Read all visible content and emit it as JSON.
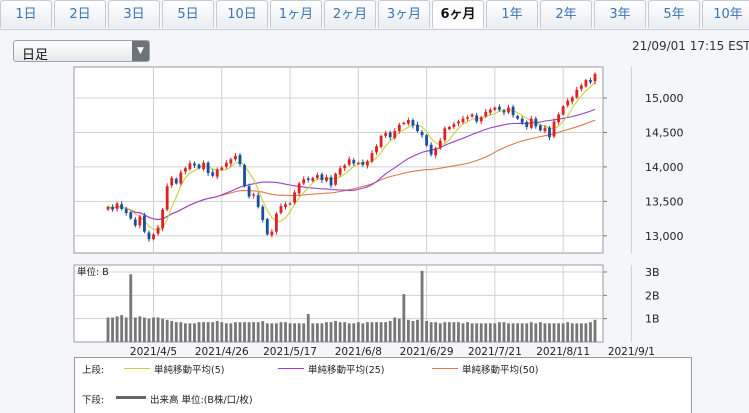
{
  "tabs": [
    "1日",
    "2日",
    "3日",
    "5日",
    "10日",
    "1ヶ月",
    "2ヶ月",
    "3ヶ月",
    "6ヶ月",
    "1年",
    "2年",
    "3年",
    "5年",
    "10年"
  ],
  "active_tab": "6ヶ月",
  "select": {
    "label": "日足"
  },
  "timestamp": "21/09/01 17:15 EST",
  "volume_unit_label": "単位: B",
  "colors": {
    "up": "#dd2222",
    "down": "#1d4e9c",
    "ma5": "#c8d23a",
    "ma25": "#9a3fd1",
    "ma50": "#e07a4a",
    "volume": "#777777"
  },
  "legend": {
    "upper_label": "上段:",
    "lower_label": "下段:",
    "items": [
      {
        "name": "単純移動平均(5)",
        "color": "#c8d23a"
      },
      {
        "name": "単純移動平均(25)",
        "color": "#9a3fd1"
      },
      {
        "name": "単純移動平均(50)",
        "color": "#e07a4a"
      }
    ],
    "volume_item": {
      "name": "出来高 単位:(B株/口/枚)",
      "color": "#666666"
    }
  },
  "chart_data": {
    "type": "candlestick",
    "price_axis": {
      "ticks": [
        13000,
        13500,
        14000,
        14500,
        15000
      ],
      "tick_labels": [
        "13,000",
        "13,500",
        "14,000",
        "14,500",
        "15,000"
      ],
      "range": [
        12750,
        15450
      ]
    },
    "volume_axis": {
      "ticks": [
        1,
        2,
        3
      ],
      "tick_labels": [
        "1B",
        "2B",
        "3B"
      ],
      "range": [
        0,
        3.3
      ]
    },
    "date_labels": [
      "2021/4/5",
      "2021/4/26",
      "2021/5/17",
      "2021/6/8",
      "2021/6/29",
      "2021/7/21",
      "2021/8/11",
      "2021/9/1"
    ],
    "date_label_index": [
      10,
      25,
      40,
      55,
      70,
      85,
      100,
      115
    ],
    "close": [
      13420,
      13380,
      13470,
      13390,
      13330,
      13250,
      13150,
      13280,
      13060,
      12950,
      13020,
      13120,
      13380,
      13720,
      13840,
      13760,
      13920,
      13980,
      14050,
      14020,
      13980,
      14060,
      13910,
      13870,
      13960,
      13990,
      14060,
      14110,
      14160,
      14040,
      13720,
      13570,
      13600,
      13420,
      13230,
      13020,
      13060,
      13320,
      13430,
      13460,
      13470,
      13630,
      13760,
      13820,
      13810,
      13840,
      13880,
      13810,
      13850,
      13730,
      13900,
      13980,
      14020,
      14110,
      14050,
      14060,
      14030,
      14080,
      14200,
      14300,
      14450,
      14490,
      14430,
      14520,
      14610,
      14640,
      14680,
      14600,
      14520,
      14460,
      14310,
      14180,
      14270,
      14380,
      14560,
      14580,
      14620,
      14660,
      14700,
      14720,
      14760,
      14660,
      14720,
      14800,
      14830,
      14860,
      14830,
      14790,
      14860,
      14750,
      14700,
      14640,
      14580,
      14700,
      14590,
      14530,
      14570,
      14430,
      14660,
      14760,
      14880,
      14960,
      15010,
      15120,
      15180,
      15260,
      15230,
      15350
    ],
    "volume": [
      1.05,
      1.05,
      1.1,
      1.15,
      1.05,
      2.9,
      1.05,
      1.1,
      1.05,
      1.0,
      1.05,
      1.05,
      1.0,
      0.95,
      0.9,
      0.85,
      0.85,
      0.8,
      0.8,
      0.8,
      0.85,
      0.85,
      0.85,
      0.85,
      0.9,
      0.85,
      0.8,
      0.8,
      0.85,
      0.85,
      0.85,
      0.85,
      0.85,
      0.85,
      0.9,
      0.8,
      0.8,
      0.8,
      0.85,
      0.85,
      0.8,
      0.8,
      0.8,
      0.8,
      1.2,
      0.8,
      0.8,
      0.8,
      0.85,
      0.85,
      0.9,
      0.85,
      0.85,
      0.8,
      0.8,
      0.85,
      0.8,
      0.85,
      0.85,
      0.85,
      0.85,
      0.85,
      0.9,
      1.05,
      1.0,
      2.05,
      0.95,
      0.9,
      0.95,
      3.05,
      0.9,
      0.85,
      0.85,
      0.8,
      0.85,
      0.85,
      0.85,
      0.85,
      0.8,
      0.85,
      0.8,
      0.8,
      0.8,
      0.8,
      0.8,
      0.8,
      0.85,
      0.85,
      0.8,
      0.8,
      0.8,
      0.8,
      0.8,
      0.85,
      0.8,
      0.85,
      0.8,
      0.8,
      0.8,
      0.8,
      0.8,
      0.85,
      0.8,
      0.8,
      0.8,
      0.8,
      0.85,
      0.95
    ]
  }
}
